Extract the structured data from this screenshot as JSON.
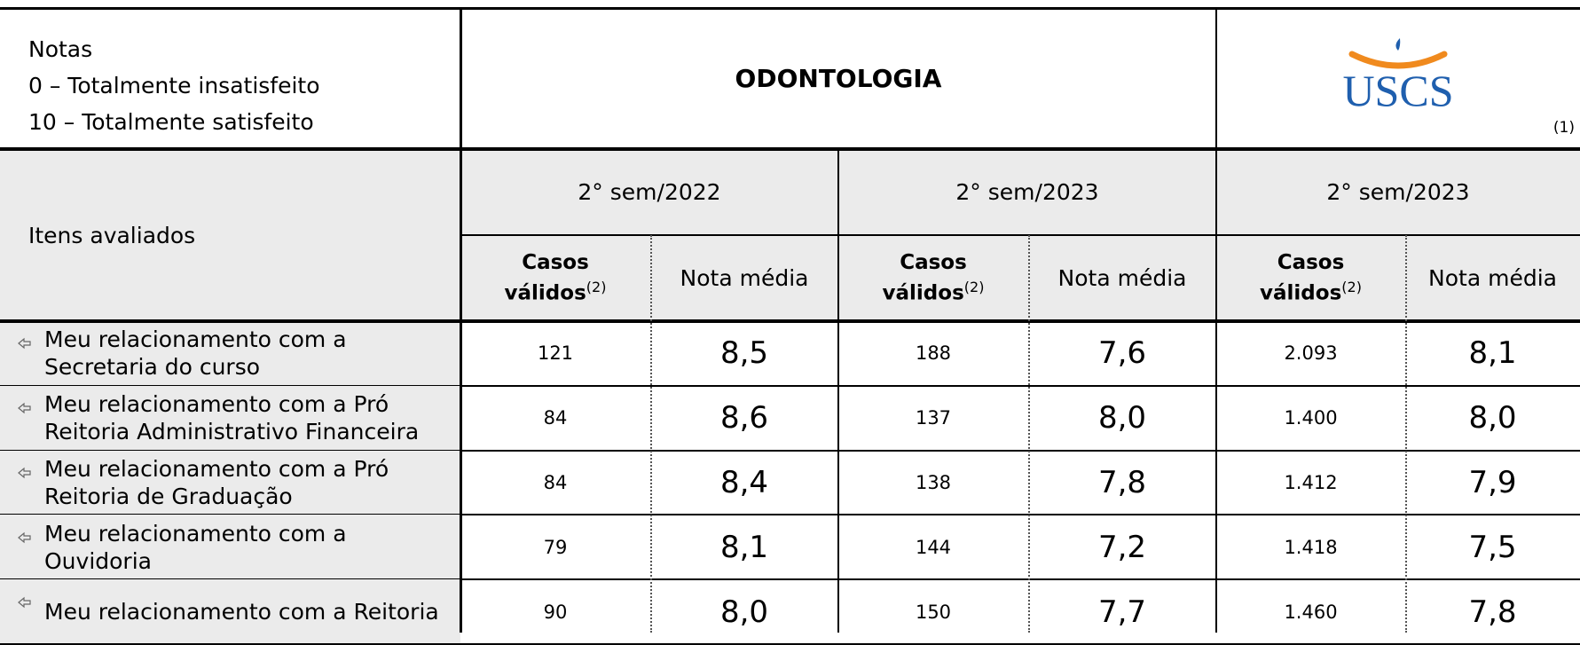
{
  "header": {
    "notes_title": "Notas",
    "notes": [
      "0 – Totalmente insatisfeito",
      "10 – Totalmente satisfeito"
    ],
    "course": "ODONTOLOGIA",
    "logo": "USCS",
    "logo_note": "(1)"
  },
  "table": {
    "row_header": "Itens avaliados",
    "periods": [
      "2° sem/2022",
      "2° sem/2023",
      "2° sem/2023"
    ],
    "cases_label": [
      "Casos",
      "válidos"
    ],
    "cases_note": "(2)",
    "score_label": "Nota média",
    "rows": [
      [
        "Meu relacionamento com a Secretaria do curso",
        "121",
        "8,5",
        "188",
        "7,6",
        "2.093",
        "8,1"
      ],
      [
        "Meu relacionamento com a Pró Reitoria Administrativo Financeira",
        "84",
        "8,6",
        "137",
        "8,0",
        "1.400",
        "8,0"
      ],
      [
        "Meu relacionamento com a Pró Reitoria de Graduação",
        "84",
        "8,4",
        "138",
        "7,8",
        "1.412",
        "7,9"
      ],
      [
        "Meu relacionamento com a Ouvidoria",
        "79",
        "8,1",
        "144",
        "7,2",
        "1.418",
        "7,5"
      ],
      [
        "Meu relacionamento com a Reitoria",
        "90",
        "8,0",
        "150",
        "7,7",
        "1.460",
        "7,8"
      ]
    ]
  }
}
